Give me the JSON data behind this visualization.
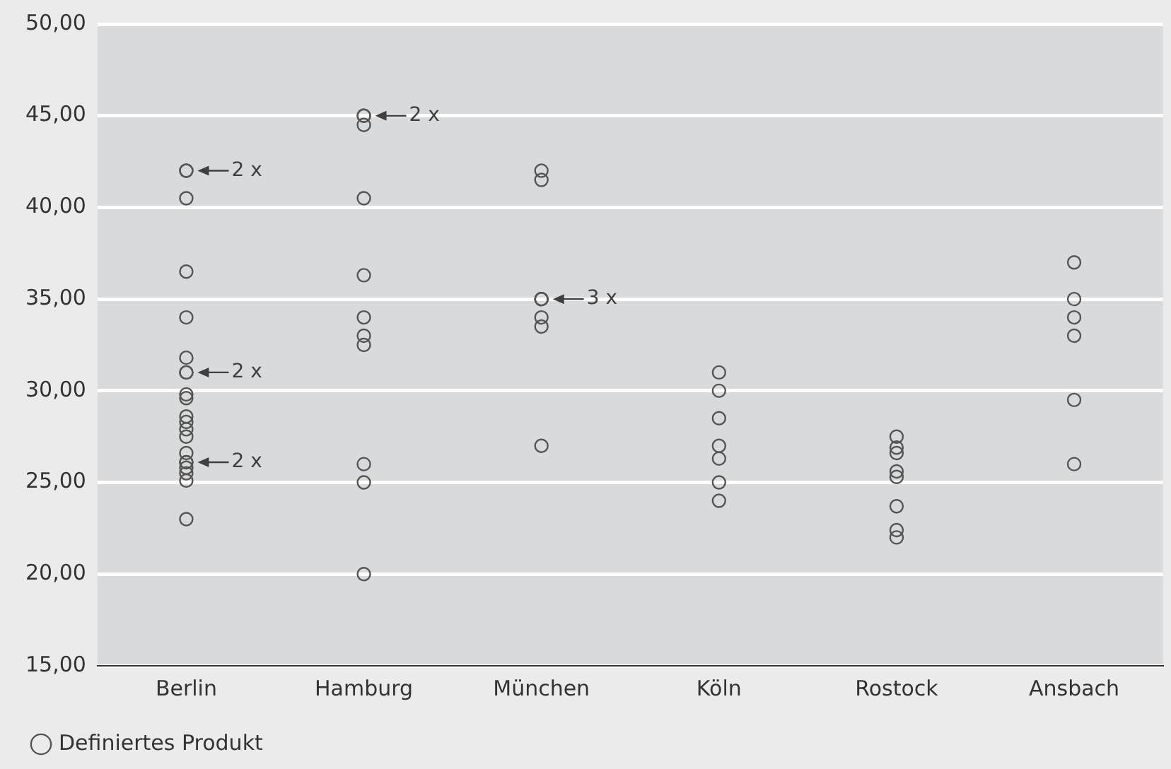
{
  "chart_data": {
    "type": "scatter",
    "categories": [
      "Berlin",
      "Hamburg",
      "München",
      "Köln",
      "Rostock",
      "Ansbach"
    ],
    "series": [
      {
        "name": "Definiertes Produkt",
        "color": "#555555",
        "x": [
          "Berlin",
          "Berlin",
          "Berlin",
          "Berlin",
          "Berlin",
          "Berlin",
          "Berlin",
          "Berlin",
          "Berlin",
          "Berlin",
          "Berlin",
          "Berlin",
          "Berlin",
          "Berlin",
          "Berlin",
          "Berlin",
          "Berlin",
          "Berlin",
          "Berlin",
          "Berlin",
          "Berlin",
          "Hamburg",
          "Hamburg",
          "Hamburg",
          "Hamburg",
          "Hamburg",
          "Hamburg",
          "Hamburg",
          "Hamburg",
          "Hamburg",
          "Hamburg",
          "Hamburg",
          "München",
          "München",
          "München",
          "München",
          "München",
          "München",
          "München",
          "München",
          "Köln",
          "Köln",
          "Köln",
          "Köln",
          "Köln",
          "Köln",
          "Köln",
          "Rostock",
          "Rostock",
          "Rostock",
          "Rostock",
          "Rostock",
          "Rostock",
          "Rostock",
          "Rostock",
          "Ansbach",
          "Ansbach",
          "Ansbach",
          "Ansbach",
          "Ansbach",
          "Ansbach"
        ],
        "values": [
          42,
          42,
          40.5,
          36.5,
          34,
          31.8,
          31,
          31,
          29.8,
          29.6,
          28.6,
          28.3,
          27.9,
          27.5,
          26.6,
          26.1,
          26.1,
          25.8,
          25.5,
          25.1,
          23,
          45,
          45,
          44.5,
          40.5,
          36.3,
          34,
          33,
          32.5,
          26,
          25,
          20,
          42,
          41.5,
          35,
          35,
          35,
          34,
          33.5,
          27,
          31,
          30,
          28.5,
          27,
          26.3,
          25,
          24,
          27.5,
          26.9,
          26.6,
          25.6,
          25.3,
          23.7,
          22.4,
          22,
          37,
          35,
          34,
          33,
          29.5,
          26
        ]
      }
    ],
    "ylim": [
      15,
      50
    ],
    "yticks": [
      {
        "value": 15,
        "label": "15,00"
      },
      {
        "value": 20,
        "label": "20,00"
      },
      {
        "value": 25,
        "label": "25,00"
      },
      {
        "value": 30,
        "label": "30,00"
      },
      {
        "value": 35,
        "label": "35,00"
      },
      {
        "value": 40,
        "label": "40,00"
      },
      {
        "value": 45,
        "label": "45,00"
      },
      {
        "value": 50,
        "label": "50,00"
      }
    ],
    "grid": "y",
    "legend": "bottom left",
    "marker": "circle",
    "annotations": [
      {
        "text": "2 x",
        "x": "Berlin",
        "y": 42
      },
      {
        "text": "2 x",
        "x": "Berlin",
        "y": 31
      },
      {
        "text": "2 x",
        "x": "Berlin",
        "y": 26.1
      },
      {
        "text": "2 x",
        "x": "Hamburg",
        "y": 45
      },
      {
        "text": "3 x",
        "x": "München",
        "y": 35
      }
    ]
  }
}
